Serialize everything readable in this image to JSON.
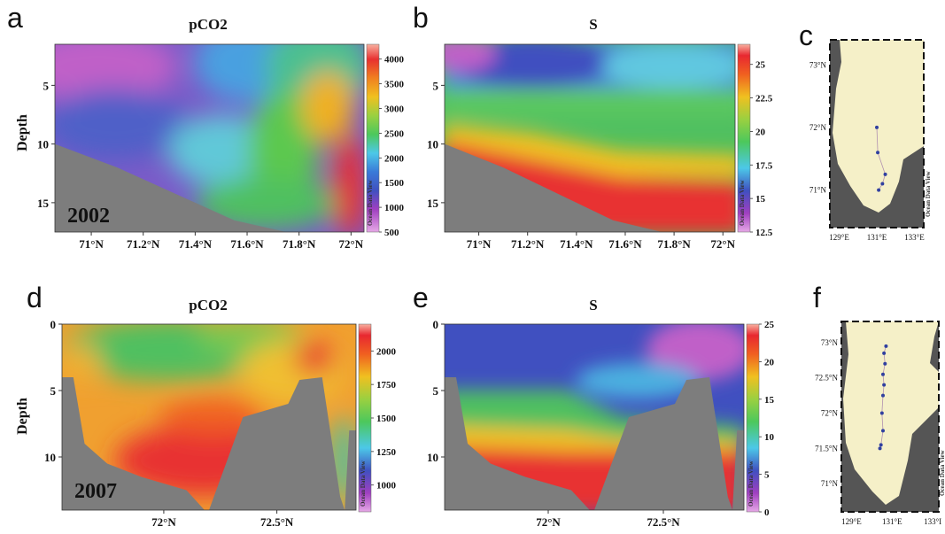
{
  "panel_letters": [
    "a",
    "b",
    "c",
    "d",
    "e",
    "f"
  ],
  "watermark": "Ocean Data View",
  "chart_data": [
    {
      "panel": "a",
      "type": "heatmap",
      "title": "pCO2",
      "ylabel": "Depth",
      "year_label": "2002",
      "x_ticks": [
        "71°N",
        "71.2°N",
        "71.4°N",
        "71.6°N",
        "71.8°N",
        "72°N"
      ],
      "x_values": [
        71.0,
        71.2,
        71.4,
        71.6,
        71.8,
        72.0
      ],
      "xlim": [
        70.86,
        72.05
      ],
      "y_ticks": [
        "5",
        "10",
        "15"
      ],
      "y_values": [
        5,
        10,
        15
      ],
      "ylim": [
        1.5,
        17.5
      ],
      "colorbar_ticks": [
        "4000",
        "3500",
        "3000",
        "2500",
        "2000",
        "1500",
        "1000",
        "500"
      ],
      "colorbar_values": [
        4000,
        3500,
        3000,
        2500,
        2000,
        1500,
        1000,
        500
      ],
      "colorbar_range": [
        500,
        4300
      ],
      "bottom": [
        [
          70.86,
          10
        ],
        [
          71.1,
          12
        ],
        [
          71.3,
          14
        ],
        [
          71.55,
          16.5
        ],
        [
          71.75,
          17.5
        ]
      ]
    },
    {
      "panel": "b",
      "type": "heatmap",
      "title": "S",
      "x_ticks": [
        "71°N",
        "71.2°N",
        "71.4°N",
        "71.6°N",
        "71.8°N",
        "72°N"
      ],
      "x_values": [
        71.0,
        71.2,
        71.4,
        71.6,
        71.8,
        72.0
      ],
      "xlim": [
        70.86,
        72.05
      ],
      "y_ticks": [
        "5",
        "10",
        "15"
      ],
      "y_values": [
        5,
        10,
        15
      ],
      "ylim": [
        1.5,
        17.5
      ],
      "colorbar_ticks": [
        "25",
        "22.5",
        "20",
        "17.5",
        "15",
        "12.5"
      ],
      "colorbar_values": [
        25,
        22.5,
        20,
        17.5,
        15,
        12.5
      ],
      "colorbar_range": [
        12.5,
        26.5
      ],
      "bottom": [
        [
          70.86,
          10
        ],
        [
          71.1,
          12
        ],
        [
          71.3,
          14
        ],
        [
          71.55,
          16.5
        ],
        [
          71.75,
          17.5
        ]
      ]
    },
    {
      "panel": "d",
      "type": "heatmap",
      "title": "pCO2",
      "ylabel": "Depth",
      "year_label": "2007",
      "x_ticks": [
        "72°N",
        "72.5°N"
      ],
      "x_values": [
        72.0,
        72.5
      ],
      "xlim": [
        71.55,
        72.85
      ],
      "y_ticks": [
        "0",
        "5",
        "10"
      ],
      "y_values": [
        0,
        5,
        10
      ],
      "ylim": [
        0,
        14
      ],
      "colorbar_ticks": [
        "2000",
        "1750",
        "1500",
        "1250",
        "1000"
      ],
      "colorbar_values": [
        2000,
        1750,
        1500,
        1250,
        1000
      ],
      "colorbar_range": [
        800,
        2200
      ],
      "bottom": [
        [
          71.55,
          4
        ],
        [
          71.6,
          4
        ],
        [
          71.65,
          9
        ],
        [
          71.75,
          10.5
        ],
        [
          71.9,
          11.5
        ],
        [
          72.1,
          12.5
        ],
        [
          72.18,
          14
        ],
        [
          72.2,
          14
        ],
        [
          72.35,
          7
        ],
        [
          72.55,
          6
        ],
        [
          72.6,
          4.2
        ],
        [
          72.7,
          4
        ],
        [
          72.78,
          13
        ],
        [
          72.8,
          14
        ],
        [
          72.82,
          8
        ],
        [
          72.85,
          8
        ]
      ]
    },
    {
      "panel": "e",
      "type": "heatmap",
      "title": "S",
      "x_ticks": [
        "72°N",
        "72.5°N"
      ],
      "x_values": [
        72.0,
        72.5
      ],
      "xlim": [
        71.55,
        72.85
      ],
      "y_ticks": [
        "0",
        "5",
        "10"
      ],
      "y_values": [
        0,
        5,
        10
      ],
      "ylim": [
        0,
        14
      ],
      "colorbar_ticks": [
        "25",
        "20",
        "15",
        "10",
        "5",
        "0"
      ],
      "colorbar_values": [
        25,
        20,
        15,
        10,
        5,
        0
      ],
      "colorbar_range": [
        0,
        25
      ],
      "bottom": [
        [
          71.55,
          4
        ],
        [
          71.6,
          4
        ],
        [
          71.65,
          9
        ],
        [
          71.75,
          10.5
        ],
        [
          71.9,
          11.5
        ],
        [
          72.1,
          12.5
        ],
        [
          72.18,
          14
        ],
        [
          72.2,
          14
        ],
        [
          72.35,
          7
        ],
        [
          72.55,
          6
        ],
        [
          72.6,
          4.2
        ],
        [
          72.7,
          4
        ],
        [
          72.78,
          13
        ],
        [
          72.8,
          14
        ],
        [
          72.82,
          8
        ],
        [
          72.85,
          8
        ]
      ]
    },
    {
      "panel": "c",
      "type": "map",
      "lat_ticks": [
        "73°N",
        "72°N",
        "71°N"
      ],
      "lon_ticks": [
        "129°E",
        "131°E",
        "133°E"
      ],
      "stations": [
        [
          131.0,
          72.0
        ],
        [
          131.05,
          71.6
        ],
        [
          131.45,
          71.25
        ],
        [
          131.3,
          71.1
        ],
        [
          131.1,
          71.0
        ]
      ]
    },
    {
      "panel": "f",
      "type": "map",
      "lat_ticks": [
        "73°N",
        "72.5°N",
        "72°N",
        "71.5°N",
        "71°N"
      ],
      "lon_ticks": [
        "129°E",
        "131°E",
        "133°I"
      ],
      "stations": [
        [
          130.7,
          72.95
        ],
        [
          130.6,
          72.85
        ],
        [
          130.65,
          72.7
        ],
        [
          130.55,
          72.55
        ],
        [
          130.6,
          72.4
        ],
        [
          130.55,
          72.25
        ],
        [
          130.5,
          72.0
        ],
        [
          130.55,
          71.75
        ],
        [
          130.45,
          71.55
        ],
        [
          130.4,
          71.5
        ]
      ]
    }
  ]
}
